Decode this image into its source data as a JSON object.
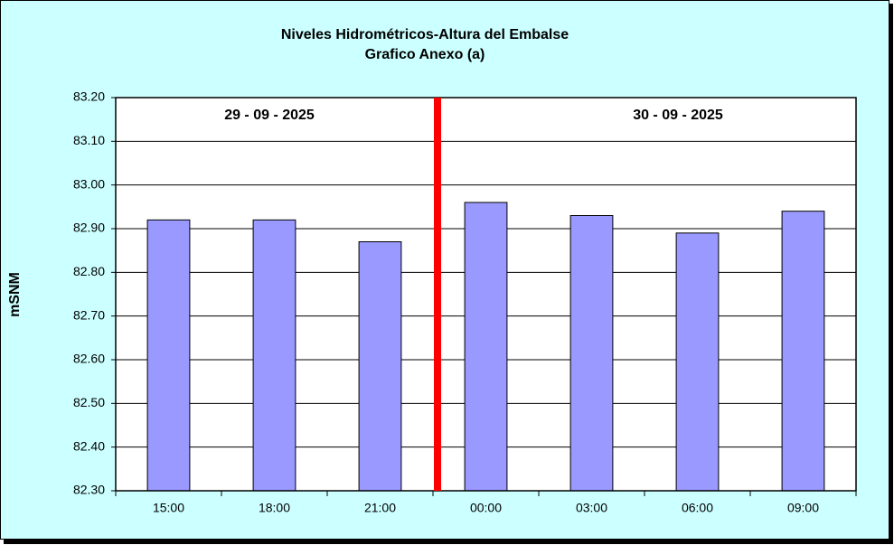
{
  "chart_data": {
    "type": "bar",
    "title": "Niveles Hidrométricos-Altura del Embalse",
    "subtitle": "Grafico Anexo (a)",
    "y_label": "mSNM",
    "annotations": [
      "29 - 09 - 2025",
      "30 - 09 - 2025"
    ],
    "categories": [
      "15:00",
      "18:00",
      "21:00",
      "00:00",
      "03:00",
      "06:00",
      "09:00"
    ],
    "values": [
      82.92,
      82.92,
      82.87,
      82.96,
      82.93,
      82.89,
      82.94
    ],
    "color": "#9999ff",
    "ylim": [
      82.3,
      83.2
    ],
    "yticks": [
      {
        "value": 82.3,
        "label": "82.30"
      },
      {
        "value": 82.4,
        "label": "82.40"
      },
      {
        "value": 82.5,
        "label": "82.50"
      },
      {
        "value": 82.6,
        "label": "82.60"
      },
      {
        "value": 82.7,
        "label": "82.70"
      },
      {
        "value": 82.8,
        "label": "82.80"
      },
      {
        "value": 82.9,
        "label": "82.90"
      },
      {
        "value": 83.0,
        "label": "83.00"
      },
      {
        "value": 83.1,
        "label": "83.10"
      },
      {
        "value": 83.2,
        "label": "83.20"
      }
    ],
    "grid": true
  }
}
